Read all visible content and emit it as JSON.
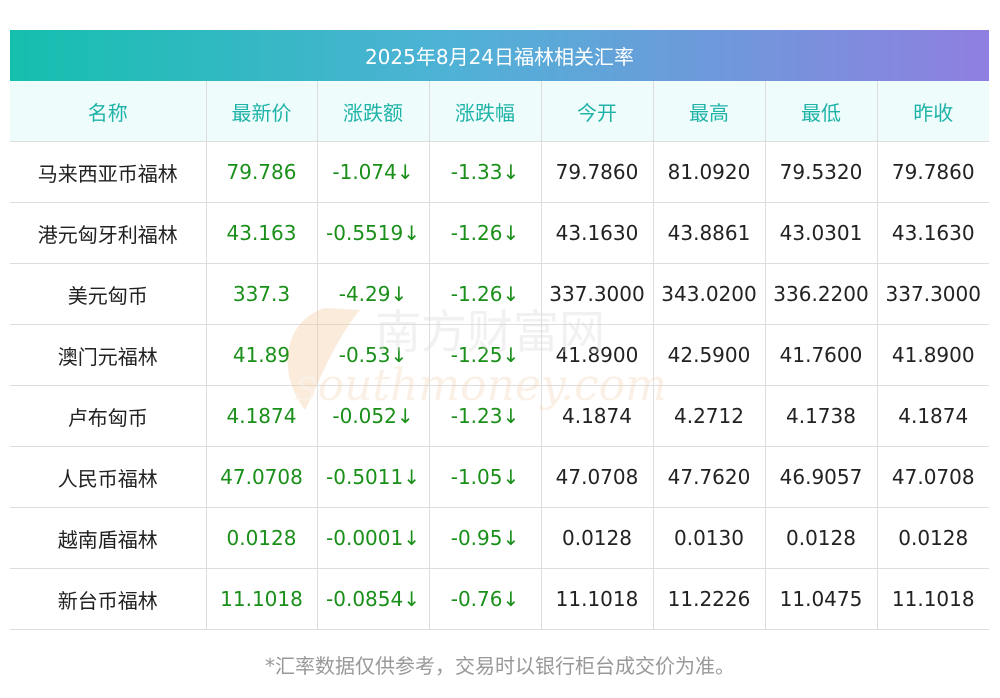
{
  "title": "2025年8月24日福林相关汇率",
  "headers": [
    "名称",
    "最新价",
    "涨跌额",
    "涨跌幅",
    "今开",
    "最高",
    "最低",
    "昨收"
  ],
  "rows": [
    [
      "马来西亚币福林",
      "79.786",
      "-1.074↓",
      "-1.33↓",
      "79.7860",
      "81.0920",
      "79.5320",
      "79.7860"
    ],
    [
      "港元匈牙利福林",
      "43.163",
      "-0.5519↓",
      "-1.26↓",
      "43.1630",
      "43.8861",
      "43.0301",
      "43.1630"
    ],
    [
      "美元匈币",
      "337.3",
      "-4.29↓",
      "-1.26↓",
      "337.3000",
      "343.0200",
      "336.2200",
      "337.3000"
    ],
    [
      "澳门元福林",
      "41.89",
      "-0.53↓",
      "-1.25↓",
      "41.8900",
      "42.5900",
      "41.7600",
      "41.8900"
    ],
    [
      "卢布匈币",
      "4.1874",
      "-0.052↓",
      "-1.23↓",
      "4.1874",
      "4.2712",
      "4.1738",
      "4.1874"
    ],
    [
      "人民币福林",
      "47.0708",
      "-0.5011↓",
      "-1.05↓",
      "47.0708",
      "47.7620",
      "46.9057",
      "47.0708"
    ],
    [
      "越南盾福林",
      "0.0128",
      "-0.0001↓",
      "-0.95↓",
      "0.0128",
      "0.0130",
      "0.0128",
      "0.0128"
    ],
    [
      "新台币福林",
      "11.1018",
      "-0.0854↓",
      "-0.76↓",
      "11.1018",
      "11.2226",
      "11.0475",
      "11.1018"
    ]
  ],
  "watermark": {
    "cn": "南方财富网",
    "en": "southmoney.com"
  },
  "note": "*汇率数据仅供参考，交易时以银行柜台成交价为准。",
  "colors": {
    "header_text": "#1fb3a8",
    "header_bg": "#effcfc",
    "down": "#1a8f1a",
    "title_gradient_start": "#15bfae",
    "title_gradient_end": "#8f7fe0"
  }
}
